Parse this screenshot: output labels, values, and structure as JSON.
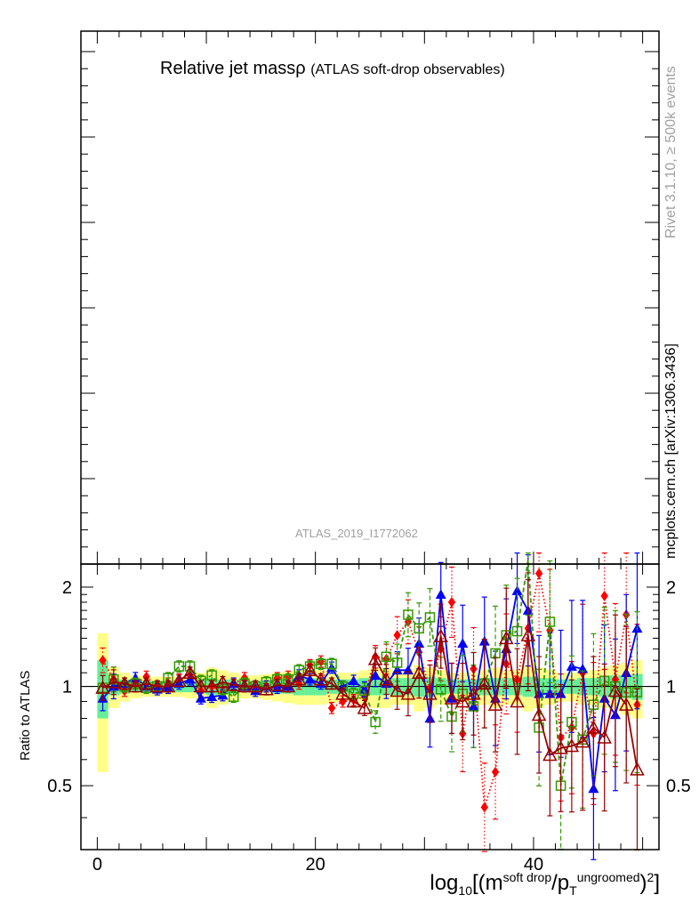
{
  "title": {
    "main": "Relative jet massρ",
    "sub": "(ATLAS soft-drop observables)"
  },
  "analysis_id": "ATLAS_2019_I1772062",
  "side": {
    "rivet": "Rivet 3.1.10, ≥ 500k events",
    "source": "mcplots.cern.ch [arXiv:1306.3436]"
  },
  "ratio_axis_label": "Ratio to ATLAS",
  "x_axis_label": {
    "prefix": "log",
    "sub1": "10",
    "open": "[(m",
    "sup1": "soft drop",
    "mid": "/p",
    "sub2": "T",
    "sup2": "ungroomed",
    "close": ")",
    "sup3": "2",
    "end": "]"
  },
  "colors": {
    "red": "#ff0000",
    "blue": "#0000ff",
    "green": "#339900",
    "darkred": "#990000",
    "band_yellow": "#ffff88",
    "band_green": "#66ee99"
  },
  "chart_data": {
    "type": "line",
    "x_ticks": [
      "0",
      "20",
      "40"
    ],
    "y_ticks": [
      "0.5",
      "1",
      "2"
    ],
    "xlim": [
      -1.5,
      51.5
    ],
    "ylim": [
      0.32,
      2.35
    ],
    "x": [
      0.5,
      1.5,
      2.5,
      3.5,
      4.5,
      5.5,
      6.5,
      7.5,
      8.5,
      9.5,
      10.5,
      11.5,
      12.5,
      13.5,
      14.5,
      15.5,
      16.5,
      17.5,
      18.5,
      19.5,
      20.5,
      21.5,
      22.5,
      23.5,
      24.5,
      25.5,
      26.5,
      27.5,
      28.5,
      29.5,
      30.5,
      31.5,
      32.5,
      33.5,
      34.5,
      35.5,
      36.5,
      37.5,
      38.5,
      39.5,
      40.5,
      41.5,
      42.5,
      43.5,
      44.5,
      45.5,
      46.5,
      47.5,
      48.5,
      49.5
    ],
    "band_yellow": [
      0.45,
      0.14,
      0.1,
      0.08,
      0.07,
      0.07,
      0.07,
      0.07,
      0.08,
      0.1,
      0.14,
      0.12,
      0.1,
      0.08,
      0.08,
      0.09,
      0.1,
      0.11,
      0.12,
      0.12,
      0.12,
      0.11,
      0.1,
      0.1,
      0.12,
      0.14,
      0.14,
      0.12,
      0.12,
      0.16,
      0.14,
      0.12,
      0.1,
      0.1,
      0.1,
      0.12,
      0.14,
      0.12,
      0.12,
      0.16,
      0.14,
      0.12,
      0.1,
      0.1,
      0.12,
      0.12,
      0.14,
      0.16,
      0.18,
      0.2
    ],
    "band_green": [
      0.2,
      0.06,
      0.05,
      0.04,
      0.04,
      0.04,
      0.04,
      0.04,
      0.04,
      0.05,
      0.06,
      0.05,
      0.05,
      0.04,
      0.04,
      0.04,
      0.05,
      0.05,
      0.06,
      0.06,
      0.06,
      0.05,
      0.05,
      0.05,
      0.06,
      0.06,
      0.06,
      0.06,
      0.06,
      0.07,
      0.07,
      0.06,
      0.05,
      0.05,
      0.05,
      0.06,
      0.06,
      0.06,
      0.06,
      0.07,
      0.06,
      0.06,
      0.05,
      0.05,
      0.06,
      0.06,
      0.07,
      0.08,
      0.08,
      0.09
    ],
    "series": [
      {
        "name": "red",
        "marker": "diamond",
        "style": "dotted",
        "values": [
          1.2,
          1.05,
          0.97,
          1.02,
          1.07,
          1.0,
          1.02,
          1.05,
          1.08,
          0.97,
          1.0,
          0.96,
          1.02,
          1.06,
          0.99,
          1.0,
          1.06,
          1.07,
          1.02,
          1.16,
          1.19,
          0.86,
          0.9,
          0.91,
          0.93,
          1.23,
          1.21,
          1.43,
          1.57,
          1.27,
          0.98,
          1.3,
          1.8,
          0.72,
          1.13,
          0.43,
          0.55,
          1.17,
          1.05,
          1.5,
          2.2,
          1.48,
          0.7,
          0.75,
          1.1,
          0.72,
          1.88,
          1.05,
          1.65,
          0.88
        ]
      },
      {
        "name": "blue",
        "marker": "triangle",
        "style": "solid",
        "values": [
          0.92,
          1.0,
          1.02,
          1.06,
          1.0,
          0.98,
          0.99,
          1.02,
          1.05,
          0.92,
          0.93,
          0.94,
          1.02,
          1.0,
          0.97,
          1.0,
          0.99,
          1.0,
          1.08,
          1.05,
          1.02,
          1.14,
          1.0,
          1.04,
          0.98,
          1.08,
          1.02,
          1.12,
          1.12,
          1.35,
          0.8,
          1.9,
          0.92,
          1.35,
          0.87,
          1.37,
          0.92,
          1.3,
          1.95,
          1.7,
          0.95,
          0.95,
          0.95,
          1.15,
          1.13,
          0.49,
          0.92,
          0.82,
          1.1,
          1.5
        ]
      },
      {
        "name": "green",
        "marker": "open-square",
        "style": "dashed",
        "values": [
          0.99,
          1.05,
          1.0,
          1.02,
          0.99,
          1.0,
          1.06,
          1.15,
          1.15,
          1.04,
          1.08,
          0.98,
          0.93,
          1.02,
          1.0,
          1.03,
          1.05,
          1.05,
          1.12,
          1.15,
          1.17,
          1.17,
          1.0,
          0.95,
          0.97,
          0.78,
          1.23,
          1.18,
          1.65,
          1.5,
          1.62,
          0.98,
          0.81,
          0.95,
          0.87,
          1.02,
          1.26,
          1.43,
          1.47,
          2.42,
          0.75,
          1.57,
          0.5,
          0.78,
          0.69,
          0.88,
          1.04,
          1.0,
          0.96,
          0.96
        ]
      },
      {
        "name": "darkred",
        "marker": "open-triangle",
        "style": "solid",
        "values": [
          0.99,
          1.03,
          1.02,
          1.0,
          1.02,
          1.0,
          1.0,
          1.04,
          1.1,
          1.0,
          1.0,
          1.03,
          1.01,
          1.0,
          1.0,
          0.98,
          1.01,
          1.0,
          1.05,
          1.12,
          1.05,
          1.02,
          0.95,
          0.9,
          0.86,
          1.21,
          1.05,
          0.97,
          0.95,
          1.1,
          0.95,
          1.42,
          0.92,
          0.9,
          0.95,
          1.02,
          0.88,
          1.4,
          0.9,
          1.43,
          0.82,
          0.62,
          0.65,
          0.66,
          0.68,
          0.75,
          0.7,
          0.97,
          0.88,
          0.56
        ]
      }
    ]
  }
}
